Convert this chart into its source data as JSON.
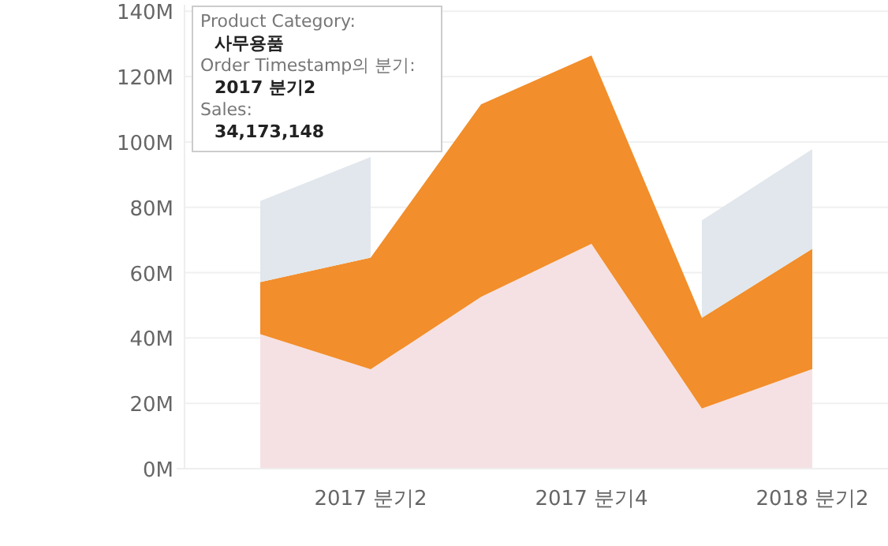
{
  "chart_data": {
    "type": "area",
    "stacked": true,
    "categories": [
      null,
      "2017 분기2",
      null,
      "2017 분기4",
      null,
      "2018 분기2"
    ],
    "series": [
      {
        "color": "#f5e1e3",
        "values": [
          41.2,
          30.4,
          52.6,
          68.8,
          18.4,
          30.5
        ]
      },
      {
        "color": "#f28e2b",
        "values": [
          15.9,
          34.2,
          58.9,
          57.7,
          27.8,
          36.8
        ]
      },
      {
        "color": "#e1e7ec",
        "values": [
          24.8,
          30.8,
          null,
          null,
          29.8,
          30.5
        ]
      }
    ],
    "ylim": [
      0,
      142
    ],
    "yticks": [
      {
        "value": 0,
        "label": "0M"
      },
      {
        "value": 20,
        "label": "20M"
      },
      {
        "value": 40,
        "label": "40M"
      },
      {
        "value": 60,
        "label": "60M"
      },
      {
        "value": 80,
        "label": "80M"
      },
      {
        "value": 100,
        "label": "100M"
      },
      {
        "value": 120,
        "label": "120M"
      },
      {
        "value": 140,
        "label": "140M"
      }
    ],
    "grid": "y",
    "annotations": [
      "Product Category:",
      "사무용품",
      "Order Timestamp의 분기:",
      "2017 분기2",
      "Sales:",
      "34,173,148"
    ]
  }
}
